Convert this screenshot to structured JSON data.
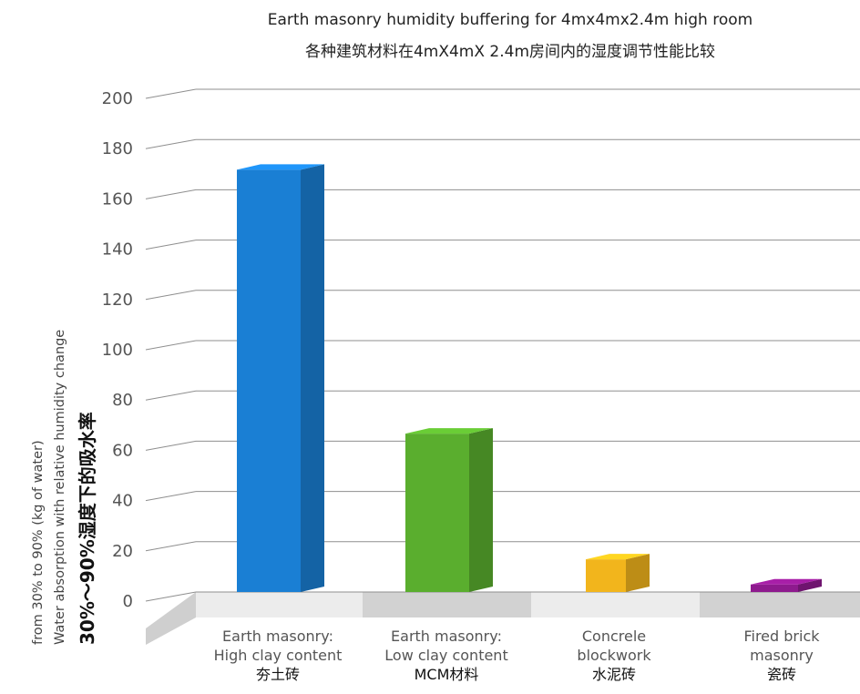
{
  "chart_data": {
    "type": "bar",
    "title": "Earth masonry humidity buffering for 4mx4mx2.4m high room",
    "subtitle": "各种建筑材料在4mX4mX 2.4m房间内的湿度调节性能比较",
    "ylabel_lines": [
      "from 30% to 90% (kg of water)",
      "Water absorption with relative humidity change",
      "30%～90%湿度下的吸水率"
    ],
    "ylim": [
      0,
      200
    ],
    "yticks": [
      0,
      20,
      40,
      60,
      80,
      100,
      120,
      140,
      160,
      180,
      200
    ],
    "grid": true,
    "categories": [
      {
        "en": "Earth masonry:\nHigh clay content",
        "zh": "夯土砖"
      },
      {
        "en": "Earth masonry:\nLow clay  content",
        "zh": "MCM材料"
      },
      {
        "en": "Concrele\nblockwork",
        "zh": "水泥砖"
      },
      {
        "en": "Fired brick\nmasonry",
        "zh": "瓷砖"
      }
    ],
    "values": [
      168,
      63,
      13,
      3
    ],
    "colors": [
      "#1a7fd4",
      "#5aae2e",
      "#f2b51c",
      "#8e1a8e"
    ]
  }
}
